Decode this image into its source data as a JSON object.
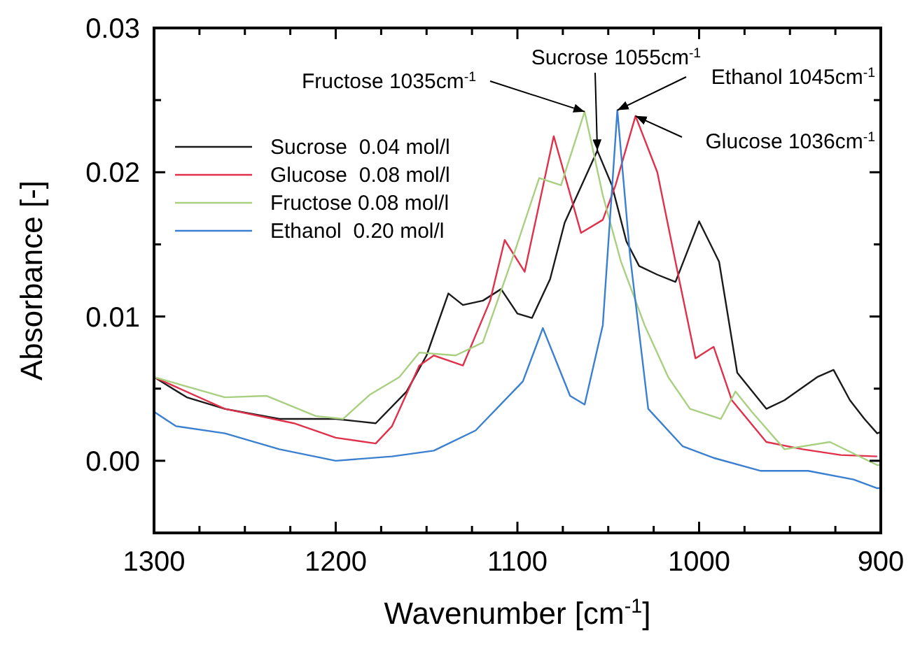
{
  "chart_data": {
    "type": "line",
    "xlabel": "Wavenumber [cm$^{-1}$]",
    "ylabel": "Absorbance [-]",
    "xlim": [
      1300,
      900
    ],
    "ylim": [
      -0.005,
      0.03
    ],
    "xticks": [
      1300,
      {
        "value": 1275,
        "label": null
      },
      {
        "value": 1250,
        "label": null
      },
      {
        "value": 1225,
        "label": null
      },
      1200,
      {
        "value": 1175,
        "label": null
      },
      {
        "value": 1150,
        "label": null
      },
      {
        "value": 1125,
        "label": null
      },
      1100,
      {
        "value": 1075,
        "label": null
      },
      {
        "value": 1050,
        "label": null
      },
      {
        "value": 1025,
        "label": null
      },
      1000,
      {
        "value": 975,
        "label": null
      },
      {
        "value": 950,
        "label": null
      },
      {
        "value": 925,
        "label": null
      },
      900
    ],
    "yticks": [
      {
        "value": -0.005,
        "label": null
      },
      {
        "value": 0,
        "label": "0.00"
      },
      {
        "value": 0.005,
        "label": null
      },
      {
        "value": 0.01,
        "label": "0.01"
      },
      {
        "value": 0.015,
        "label": null
      },
      {
        "value": 0.02,
        "label": "0.02"
      },
      {
        "value": 0.025,
        "label": null
      },
      {
        "value": 0.03,
        "label": "0.03"
      }
    ],
    "grid": false,
    "legend": "top left",
    "marker": "none",
    "line_style": "solid",
    "series": [
      {
        "name": "Sucrose  0.04 mol/l",
        "color": "#1a1a1a",
        "x": [
          1300,
          1282,
          1261,
          1231,
          1200,
          1178,
          1161,
          1150,
          1138,
          1130,
          1119,
          1109,
          1100,
          1092,
          1082,
          1074,
          1056,
          1048,
          1040,
          1033,
          1023,
          1013,
          1000,
          989,
          979,
          963,
          953,
          935,
          926,
          917,
          909,
          902,
          900
        ],
        "values": [
          0.0058,
          0.0044,
          0.0036,
          0.0029,
          0.0029,
          0.0026,
          0.0048,
          0.0073,
          0.0116,
          0.0108,
          0.0111,
          0.0119,
          0.0102,
          0.0099,
          0.0126,
          0.0165,
          0.0215,
          0.0191,
          0.0152,
          0.0135,
          0.0129,
          0.0124,
          0.0166,
          0.0138,
          0.0061,
          0.0036,
          0.0042,
          0.0058,
          0.0063,
          0.0042,
          0.0029,
          0.0019,
          0.002
        ]
      },
      {
        "name": "Glucose  0.08 mol/l",
        "color": "#e0304a",
        "x": [
          1300,
          1261,
          1223,
          1200,
          1178,
          1169,
          1154,
          1146,
          1130,
          1115,
          1107,
          1096,
          1080,
          1065,
          1053,
          1046,
          1035,
          1023,
          1013,
          1002,
          992,
          982,
          963,
          943,
          922,
          902
        ],
        "values": [
          0.0058,
          0.0036,
          0.0026,
          0.0016,
          0.0012,
          0.0024,
          0.0066,
          0.0073,
          0.0066,
          0.0111,
          0.0153,
          0.0131,
          0.0225,
          0.0158,
          0.0167,
          0.0191,
          0.0239,
          0.02,
          0.0138,
          0.0071,
          0.0079,
          0.0042,
          0.0013,
          0.0008,
          0.0004,
          0.0003
        ]
      },
      {
        "name": "Fructose 0.08 mol/l",
        "color": "#a8d080",
        "x": [
          1300,
          1261,
          1238,
          1211,
          1196,
          1181,
          1165,
          1154,
          1134,
          1119,
          1102,
          1088,
          1076,
          1063,
          1053,
          1043,
          1030,
          1017,
          1005,
          988,
          980,
          971,
          953,
          928,
          902,
          900
        ],
        "values": [
          0.0058,
          0.0044,
          0.0045,
          0.0031,
          0.0029,
          0.0046,
          0.0058,
          0.0075,
          0.0073,
          0.0082,
          0.0143,
          0.0196,
          0.0191,
          0.0242,
          0.0184,
          0.0138,
          0.0094,
          0.0058,
          0.0036,
          0.0029,
          0.0048,
          0.0034,
          0.0008,
          0.0013,
          -0.0003,
          -0.0003
        ]
      },
      {
        "name": "Ethanol  0.20 mol/l",
        "color": "#3a7fd0",
        "x": [
          1300,
          1288,
          1261,
          1231,
          1200,
          1169,
          1146,
          1123,
          1097,
          1086,
          1071,
          1063,
          1053,
          1045,
          1038,
          1028,
          1009,
          992,
          966,
          940,
          915,
          902,
          900
        ],
        "values": [
          0.0034,
          0.0024,
          0.0019,
          0.0008,
          0,
          0.0003,
          0.0007,
          0.0021,
          0.0055,
          0.0092,
          0.0045,
          0.0039,
          0.0094,
          0.0243,
          0.0142,
          0.0036,
          0.001,
          0.0002,
          -0.0007,
          -0.0007,
          -0.0013,
          -0.0019,
          -0.0019
        ]
      }
    ],
    "annotations": [
      {
        "text": "Fructose 1035cm$^{-1}$",
        "x": 1063,
        "y": 0.0242
      },
      {
        "text": "Sucrose 1055cm$^{-1}$",
        "x": 1056,
        "y": 0.0215
      },
      {
        "text": "Ethanol 1045cm$^{-1}$",
        "x": 1045,
        "y": 0.0243
      },
      {
        "text": "Glucose 1036cm$^{-1}$",
        "x": 1035,
        "y": 0.0239
      }
    ]
  }
}
